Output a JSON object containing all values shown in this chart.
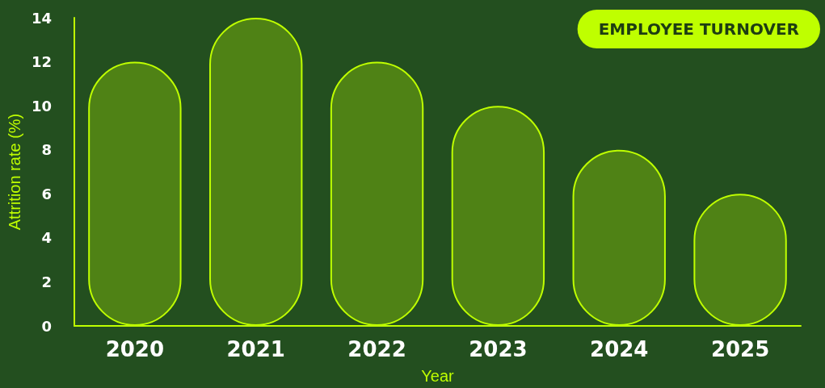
{
  "chart_data": {
    "type": "bar",
    "title": "EMPLOYEE TURNOVER",
    "xlabel": "Year",
    "ylabel": "Attrition rate (%)",
    "categories": [
      "2020",
      "2021",
      "2022",
      "2023",
      "2024",
      "2025"
    ],
    "values": [
      12,
      14,
      12,
      10,
      8,
      6
    ],
    "color": "#4f8215",
    "ylim": [
      0,
      14
    ],
    "yticks": [
      0,
      2,
      4,
      6,
      8,
      10,
      12,
      14
    ],
    "grid": false
  }
}
